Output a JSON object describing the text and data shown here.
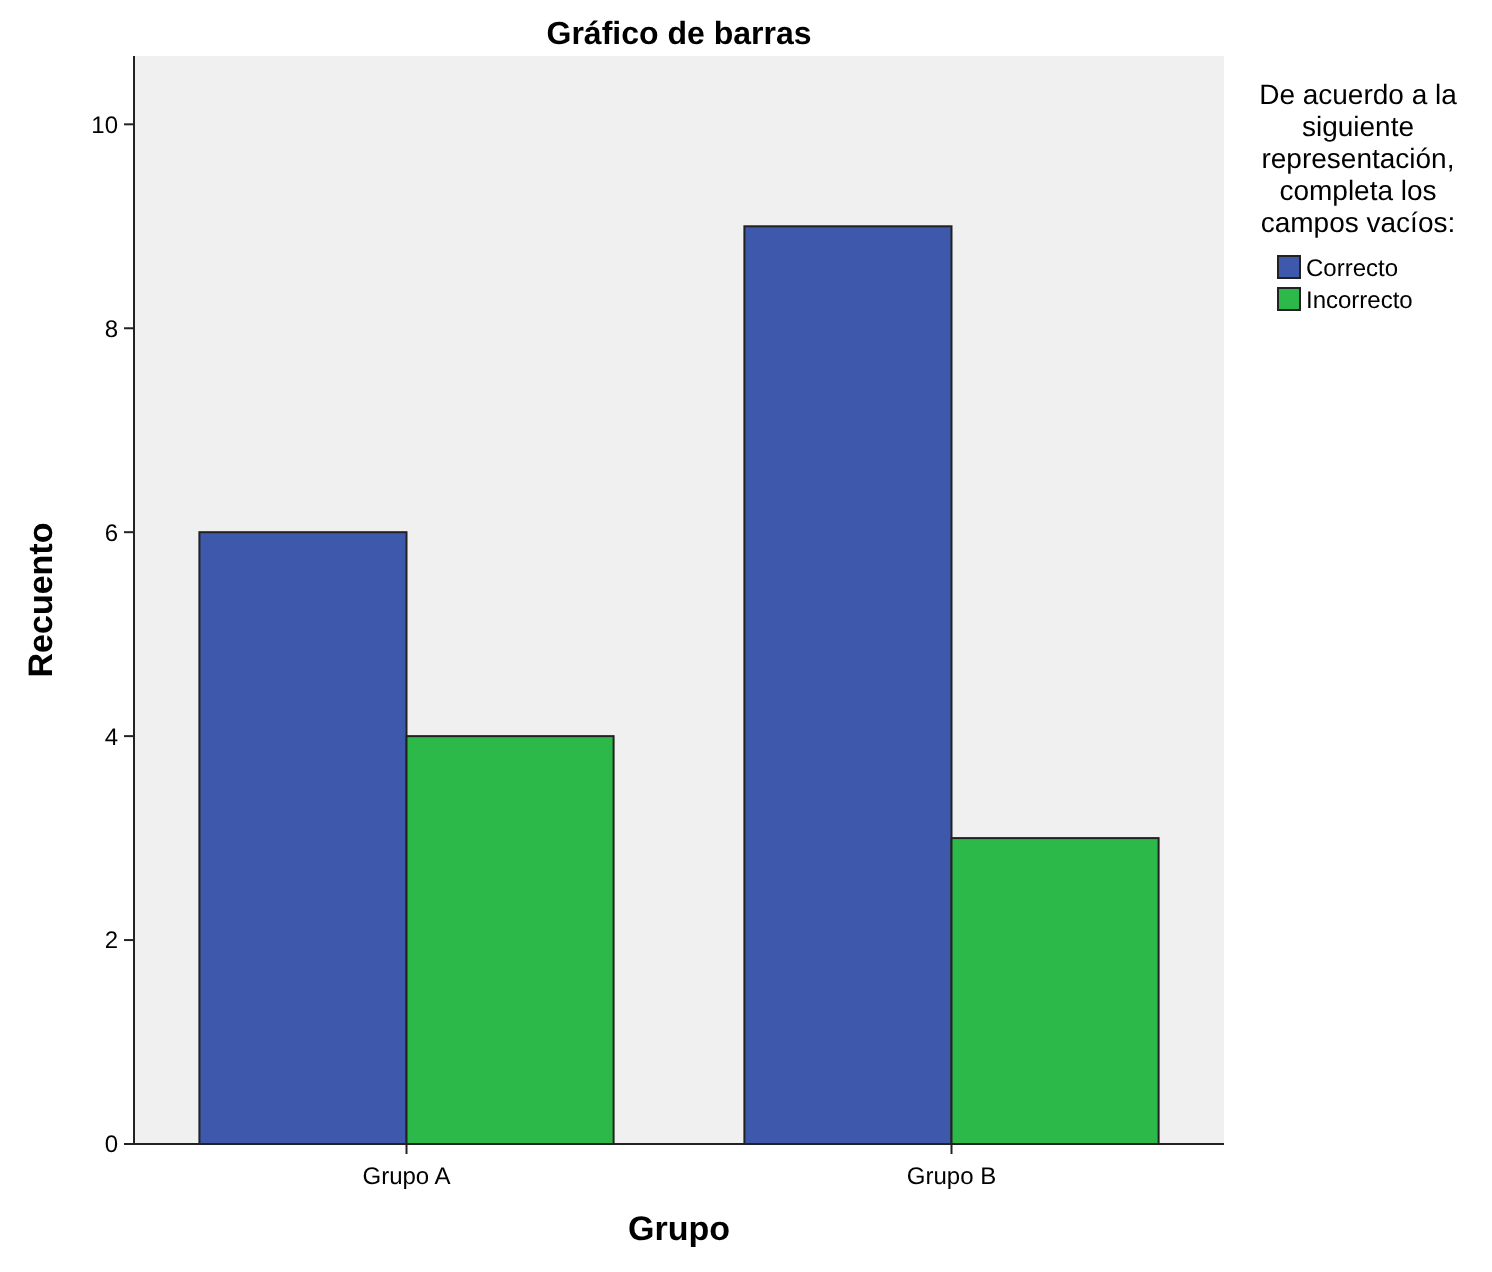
{
  "chart_data": {
    "type": "bar",
    "title": "Gráfico de barras",
    "xlabel": "Grupo",
    "ylabel": "Recuento",
    "legend_title": "De acuerdo a la siguiente representación, completa los campos vacíos:",
    "categories": [
      "Grupo A",
      "Grupo B"
    ],
    "series": [
      {
        "name": "Correcto",
        "color": "#3e58ac",
        "values": [
          6,
          9
        ]
      },
      {
        "name": "Incorrecto",
        "color": "#2db84a",
        "values": [
          4,
          3
        ]
      }
    ],
    "ylim": [
      0,
      10.67
    ],
    "yticks": [
      0,
      2,
      4,
      6,
      8,
      10
    ],
    "grid": false,
    "legend": "right"
  }
}
